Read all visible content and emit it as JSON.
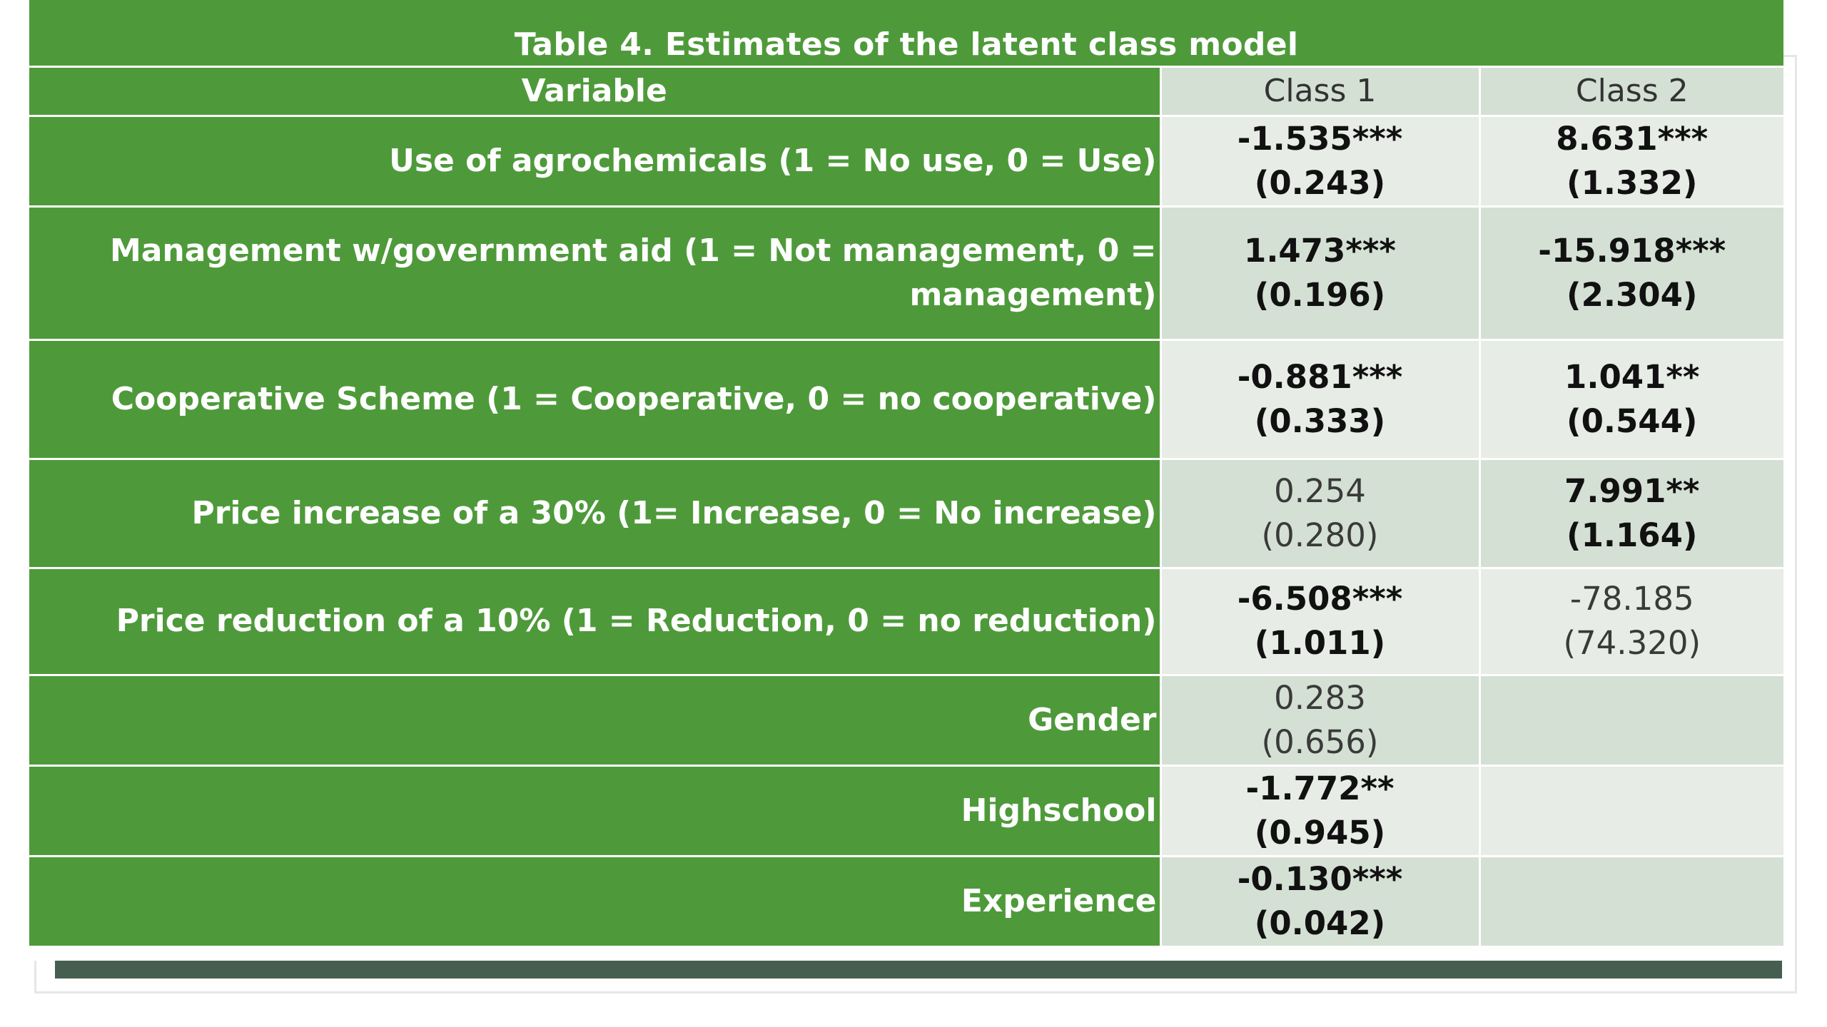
{
  "title": "Table 4. Estimates of the latent class model",
  "headers": {
    "variable": "Variable",
    "class1": "Class 1",
    "class2": "Class 2"
  },
  "rows": [
    {
      "variable": "Use of agrochemicals (1 = No use, 0 = Use)",
      "class1": {
        "coef": "-1.535***",
        "se": "(0.243)",
        "bold": true
      },
      "class2": {
        "coef": "8.631***",
        "se": "(1.332)",
        "bold": true
      }
    },
    {
      "variable_line1": "Management  w/government aid (1 = Not management,  0 =",
      "variable_line2": "management)",
      "class1": {
        "coef": "1.473***",
        "se": "(0.196)",
        "bold": true
      },
      "class2": {
        "coef": "-15.918***",
        "se": "(2.304)",
        "bold": true
      }
    },
    {
      "variable": "Cooperative Scheme (1 = Cooperative, 0 = no cooperative)",
      "class1": {
        "coef": "-0.881***",
        "se": "(0.333)",
        "bold": true
      },
      "class2": {
        "coef": "1.041**",
        "se": "(0.544)",
        "bold": true
      }
    },
    {
      "variable": "Price increase of a 30% (1= Increase, 0 = No increase)",
      "class1": {
        "coef": "0.254",
        "se": "(0.280)",
        "bold": false
      },
      "class2": {
        "coef": "7.991**",
        "se": "(1.164)",
        "bold": true
      }
    },
    {
      "variable": "Price reduction of a 10% (1 = Reduction, 0 = no reduction)",
      "class1": {
        "coef": "-6.508***",
        "se": "(1.011)",
        "bold": true
      },
      "class2": {
        "coef": "-78.185",
        "se": "(74.320)",
        "bold": false
      }
    },
    {
      "variable": "Gender",
      "class1": {
        "coef": "0.283",
        "se": "(0.656)",
        "bold": false
      },
      "class2": {
        "coef": "",
        "se": "",
        "bold": false
      }
    },
    {
      "variable": "Highschool",
      "class1": {
        "coef": "-1.772**",
        "se": "(0.945)",
        "bold": true
      },
      "class2": {
        "coef": "",
        "se": "",
        "bold": false
      }
    },
    {
      "variable": "Experience",
      "class1": {
        "coef": "-0.130***",
        "se": "(0.042)",
        "bold": true
      },
      "class2": {
        "coef": "",
        "se": "",
        "bold": false
      }
    }
  ],
  "colors": {
    "header_green": "#4e9a3a",
    "cell_light": "#e7ece6",
    "cell_dark": "#d5e0d4",
    "shadow": "#465e50"
  }
}
